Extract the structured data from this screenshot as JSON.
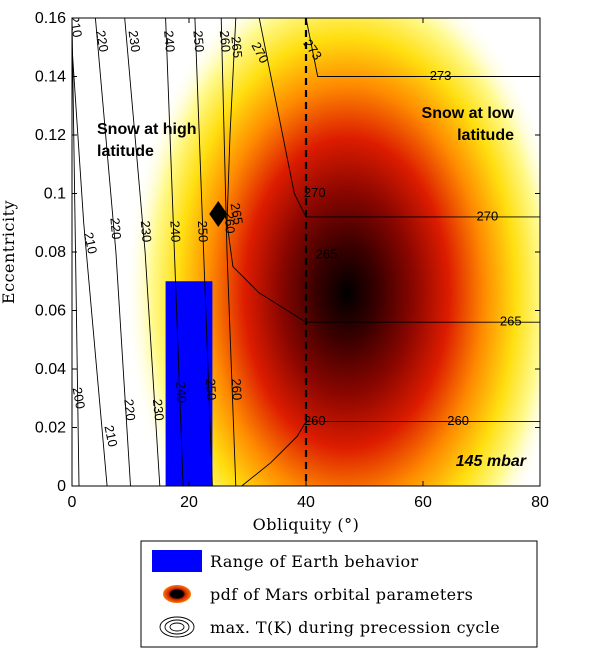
{
  "chart_data": {
    "type": "heatmap",
    "xlabel": "Obliquity (°)",
    "ylabel": "Eccentricity",
    "xlim": [
      0,
      80
    ],
    "ylim": [
      0,
      0.16
    ],
    "xticks": [
      "0",
      "20",
      "40",
      "60",
      "80"
    ],
    "yticks": [
      "0",
      "0.02",
      "0.04",
      "0.06",
      "0.08",
      "0.1",
      "0.12",
      "0.14",
      "0.16"
    ],
    "pdf_peak": {
      "obliquity": 47,
      "eccentricity": 0.066
    },
    "colormap": [
      "#ffffff",
      "#ffffc0",
      "#ffff00",
      "#ff9900",
      "#dd1100",
      "#6a0000",
      "#000000"
    ],
    "divider_obliquity": 40,
    "earth_range": {
      "obliquity": [
        16,
        24
      ],
      "eccentricity": [
        0,
        0.07
      ],
      "color": "#0000ff"
    },
    "marker": {
      "obliquity": 25,
      "eccentricity": 0.093,
      "shape": "diamond"
    },
    "contours": [
      {
        "level": "200",
        "x": [
          0,
          1.2
        ],
        "y": [
          0.16,
          0
        ]
      },
      {
        "level": "210",
        "x": [
          0,
          2,
          6
        ],
        "y": [
          0.15,
          0.09,
          0
        ]
      },
      {
        "level": "220",
        "x": [
          4,
          7.5,
          10
        ],
        "y": [
          0.16,
          0.08,
          0
        ]
      },
      {
        "level": "230",
        "x": [
          9,
          12.5,
          15
        ],
        "y": [
          0.16,
          0.08,
          0
        ]
      },
      {
        "level": "240",
        "x": [
          16,
          17.5,
          19
        ],
        "y": [
          0.16,
          0.08,
          0
        ]
      },
      {
        "level": "250",
        "x": [
          21,
          22.5,
          24
        ],
        "y": [
          0.16,
          0.08,
          0
        ]
      },
      {
        "level": "260",
        "x": [
          25.5,
          26.5,
          28
        ],
        "y": [
          0.16,
          0.08,
          0
        ]
      },
      {
        "level": "265",
        "x": [
          28,
          27,
          26.5,
          27.5,
          32,
          40,
          80
        ],
        "y": [
          0.16,
          0.12,
          0.09,
          0.075,
          0.066,
          0.056,
          0.056
        ]
      },
      {
        "level": "270",
        "x": [
          32,
          35,
          38,
          40,
          80
        ],
        "y": [
          0.16,
          0.13,
          0.1,
          0.092,
          0.092
        ]
      },
      {
        "level": "273",
        "x": [
          40,
          42,
          80
        ],
        "y": [
          0.16,
          0.14,
          0.14
        ]
      },
      {
        "level": "260",
        "x": [
          29,
          34,
          38.5,
          40,
          80
        ],
        "y": [
          0,
          0.008,
          0.017,
          0.022,
          0.022
        ]
      }
    ],
    "contour_labels": [
      {
        "text": "200",
        "x": 1,
        "y": 0.03,
        "rot": 80
      },
      {
        "text": "210",
        "x": 0.5,
        "y": 0.157,
        "rot": 80
      },
      {
        "text": "210",
        "x": 3,
        "y": 0.083,
        "rot": 78
      },
      {
        "text": "210",
        "x": 6.5,
        "y": 0.017,
        "rot": 78
      },
      {
        "text": "220",
        "x": 5,
        "y": 0.152,
        "rot": 80
      },
      {
        "text": "220",
        "x": 7.3,
        "y": 0.088,
        "rot": 85
      },
      {
        "text": "220",
        "x": 9.7,
        "y": 0.026,
        "rot": 84
      },
      {
        "text": "230",
        "x": 10.5,
        "y": 0.152,
        "rot": 82
      },
      {
        "text": "230",
        "x": 12.5,
        "y": 0.087,
        "rot": 85
      },
      {
        "text": "230",
        "x": 14.6,
        "y": 0.026,
        "rot": 84
      },
      {
        "text": "240",
        "x": 16.5,
        "y": 0.152,
        "rot": 85
      },
      {
        "text": "240",
        "x": 17.5,
        "y": 0.087,
        "rot": 87
      },
      {
        "text": "240",
        "x": 18.5,
        "y": 0.032,
        "rot": 87
      },
      {
        "text": "250",
        "x": 21.5,
        "y": 0.152,
        "rot": 85
      },
      {
        "text": "250",
        "x": 22.2,
        "y": 0.087,
        "rot": 87
      },
      {
        "text": "250",
        "x": 23.6,
        "y": 0.033,
        "rot": 87
      },
      {
        "text": "260",
        "x": 26.0,
        "y": 0.152,
        "rot": 85
      },
      {
        "text": "260",
        "x": 26.8,
        "y": 0.09,
        "rot": 87
      },
      {
        "text": "260",
        "x": 28.0,
        "y": 0.033,
        "rot": 87
      },
      {
        "text": "265",
        "x": 28.0,
        "y": 0.15,
        "rot": 85
      },
      {
        "text": "265",
        "x": 28.0,
        "y": 0.093,
        "rot": 80
      },
      {
        "text": "265",
        "x": 43.5,
        "y": 0.079,
        "rot": 0
      },
      {
        "text": "265",
        "x": 75,
        "y": 0.056,
        "rot": 0
      },
      {
        "text": "270",
        "x": 32,
        "y": 0.148,
        "rot": 62
      },
      {
        "text": "270",
        "x": 41.5,
        "y": 0.1,
        "rot": 0
      },
      {
        "text": "270",
        "x": 71,
        "y": 0.092,
        "rot": 0
      },
      {
        "text": "273",
        "x": 41,
        "y": 0.149,
        "rot": 55
      },
      {
        "text": "273",
        "x": 63,
        "y": 0.14,
        "rot": 0
      },
      {
        "text": "260",
        "x": 41.5,
        "y": 0.022,
        "rot": 0
      },
      {
        "text": "260",
        "x": 66,
        "y": 0.022,
        "rot": 0
      }
    ],
    "annotations": {
      "high_1": "Snow at high",
      "high_2": "latitude",
      "low_1": "Snow at low",
      "low_2": "latitude",
      "pressure": "145 mbar"
    },
    "legend": [
      {
        "icon": "blue-rectangle-icon",
        "label": "Range of Earth behavior"
      },
      {
        "icon": "pdf-ellipse-icon",
        "label": "pdf of Mars orbital parameters"
      },
      {
        "icon": "contour-rings-icon",
        "label": "max. T(K) during precession cycle"
      }
    ]
  }
}
